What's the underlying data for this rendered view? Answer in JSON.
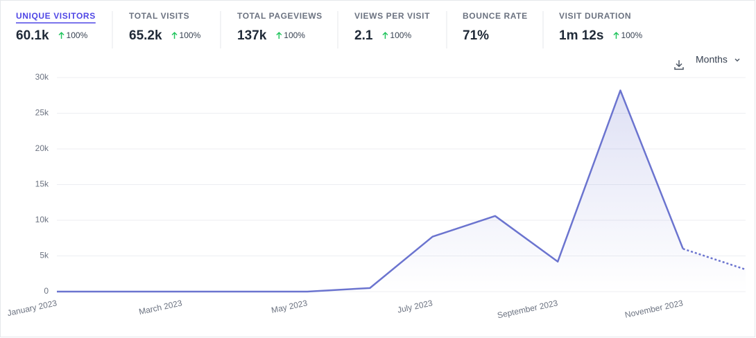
{
  "stats": [
    {
      "label": "UNIQUE VISITORS",
      "value": "60.1k",
      "change": "100%"
    },
    {
      "label": "TOTAL VISITS",
      "value": "65.2k",
      "change": "100%"
    },
    {
      "label": "TOTAL PAGEVIEWS",
      "value": "137k",
      "change": "100%"
    },
    {
      "label": "VIEWS PER VISIT",
      "value": "2.1",
      "change": "100%"
    },
    {
      "label": "BOUNCE RATE",
      "value": "71%"
    },
    {
      "label": "VISIT DURATION",
      "value": "1m 12s",
      "change": "100%"
    }
  ],
  "interval": "Months",
  "chart_data": {
    "type": "line",
    "categories": [
      "January 2023",
      null,
      "March 2023",
      null,
      "May 2023",
      null,
      "July 2023",
      null,
      "September 2023",
      null,
      "November 2023",
      null
    ],
    "series": [
      {
        "name": "Unique visitors",
        "color": "#6b74cf",
        "values": [
          0,
          0,
          0,
          0,
          0,
          500,
          7700,
          10600,
          4200,
          28200,
          6000,
          3100
        ]
      }
    ],
    "ylim": [
      0,
      30000
    ],
    "yticks": [
      0,
      {
        "value": 5000,
        "label": "5k"
      },
      {
        "value": 10000,
        "label": "10k"
      },
      {
        "value": 15000,
        "label": "15k"
      },
      {
        "value": 20000,
        "label": "20k"
      },
      {
        "value": 25000,
        "label": "25k"
      },
      {
        "value": 30000,
        "label": "30k"
      }
    ],
    "grid": true,
    "dashed_last_segment": true
  }
}
